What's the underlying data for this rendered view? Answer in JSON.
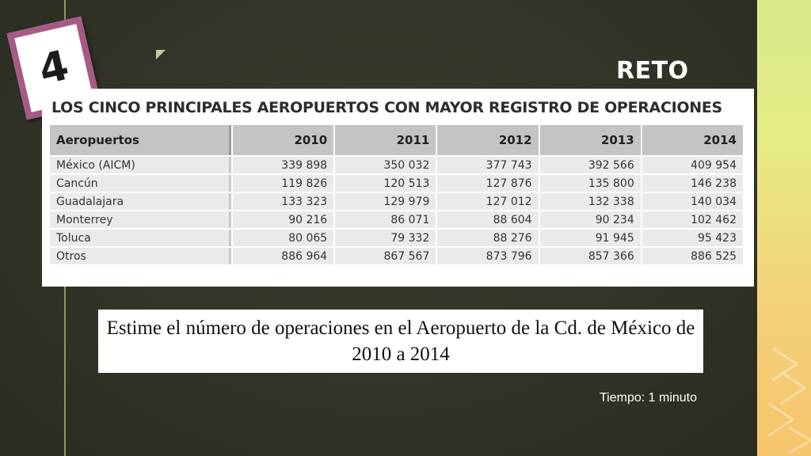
{
  "badge": {
    "number": "4"
  },
  "header": {
    "title": "RETO"
  },
  "table": {
    "title": "LOS CINCO PRINCIPALES AEROPUERTOS CON MAYOR REGISTRO DE OPERACIONES",
    "columns": [
      "Aeropuertos",
      "2010",
      "2011",
      "2012",
      "2013",
      "2014"
    ],
    "rows": [
      [
        "México (AICM)",
        "339 898",
        "350 032",
        "377 743",
        "392 566",
        "409 954"
      ],
      [
        "Cancún",
        "119 826",
        "120 513",
        "127 876",
        "135 800",
        "146 238"
      ],
      [
        "Guadalajara",
        "133 323",
        "129 979",
        "127 012",
        "132 338",
        "140 034"
      ],
      [
        "Monterrey",
        "90 216",
        "86 071",
        "88 604",
        "90 234",
        "102 462"
      ],
      [
        "Toluca",
        "80 065",
        "79 332",
        "88 276",
        "91 945",
        "95 423"
      ],
      [
        "Otros",
        "886 964",
        "867 567",
        "873 796",
        "857 366",
        "886 525"
      ]
    ]
  },
  "question": {
    "text": "Estime el número de operaciones en el Aeropuerto de la Cd. de México de 2010 a 2014"
  },
  "timer": {
    "label": "Tiempo: 1 minuto"
  },
  "colors": {
    "badge_border": "#a75a86",
    "background": "#343527",
    "strip_top": "#d7ea8a",
    "strip_bottom": "#f6c56d"
  }
}
